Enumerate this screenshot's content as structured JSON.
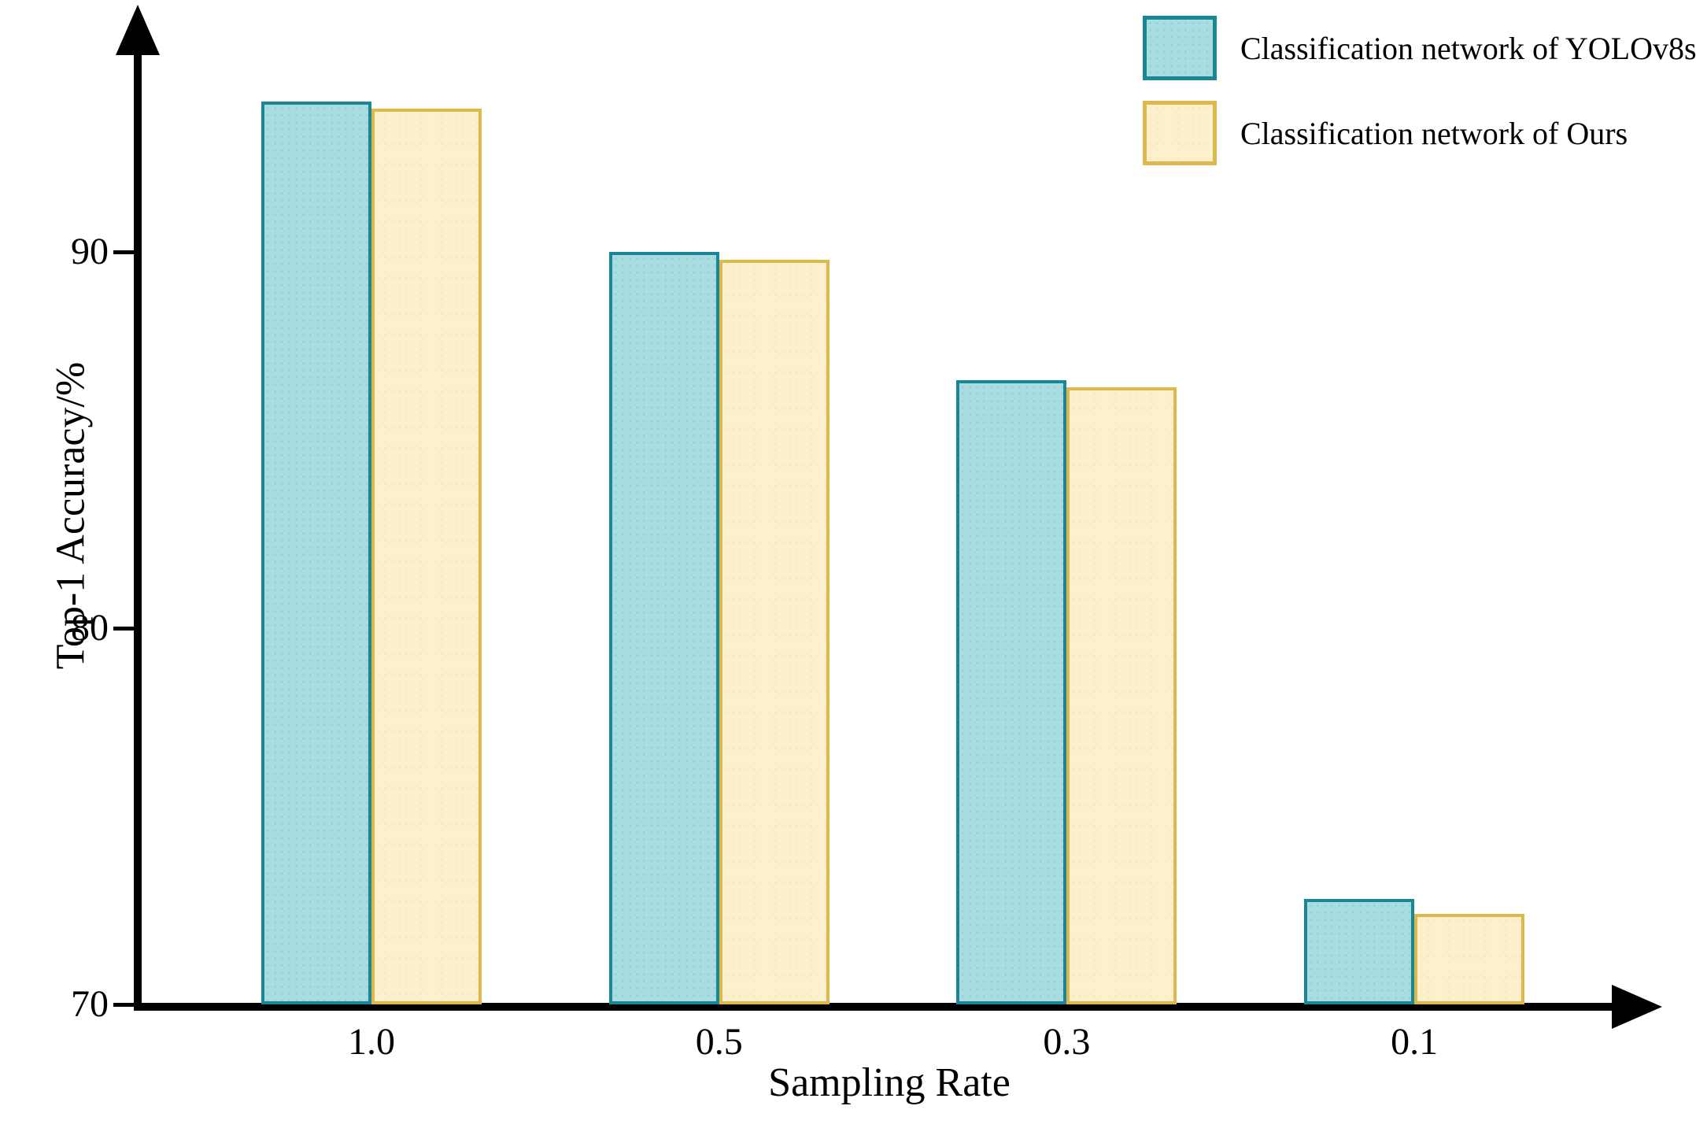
{
  "figure": {
    "title": "",
    "background": "#ffffff",
    "axis_color": "#000000"
  },
  "legend": {
    "position": "top-right",
    "items": [
      {
        "label": "Classification network of YOLOv8s",
        "fill": "#a9dce1",
        "border": "#1b8795"
      },
      {
        "label": "Classification network of Ours",
        "fill": "#fdf0cd",
        "border": "#ddb94d"
      }
    ]
  },
  "chart_data": {
    "type": "bar",
    "title": "",
    "xlabel": "Sampling Rate",
    "ylabel": "Top-1 Accuracy/%",
    "categories": [
      "1.0",
      "0.5",
      "0.3",
      "0.1"
    ],
    "series": [
      {
        "name": "Classification network of YOLOv8s",
        "values": [
          94.0,
          90.0,
          86.6,
          72.8
        ],
        "fill": "#a9dce1",
        "border": "#1b8795"
      },
      {
        "name": "Classification network of Ours",
        "values": [
          93.8,
          89.8,
          86.4,
          72.4
        ],
        "fill": "#fdf0cd",
        "border": "#ddb94d"
      }
    ],
    "ylim": [
      70,
      96.5
    ],
    "yticks": [
      70,
      80,
      90
    ],
    "grid": false,
    "legend_position": "top-right",
    "bar_texture": "dotted"
  }
}
